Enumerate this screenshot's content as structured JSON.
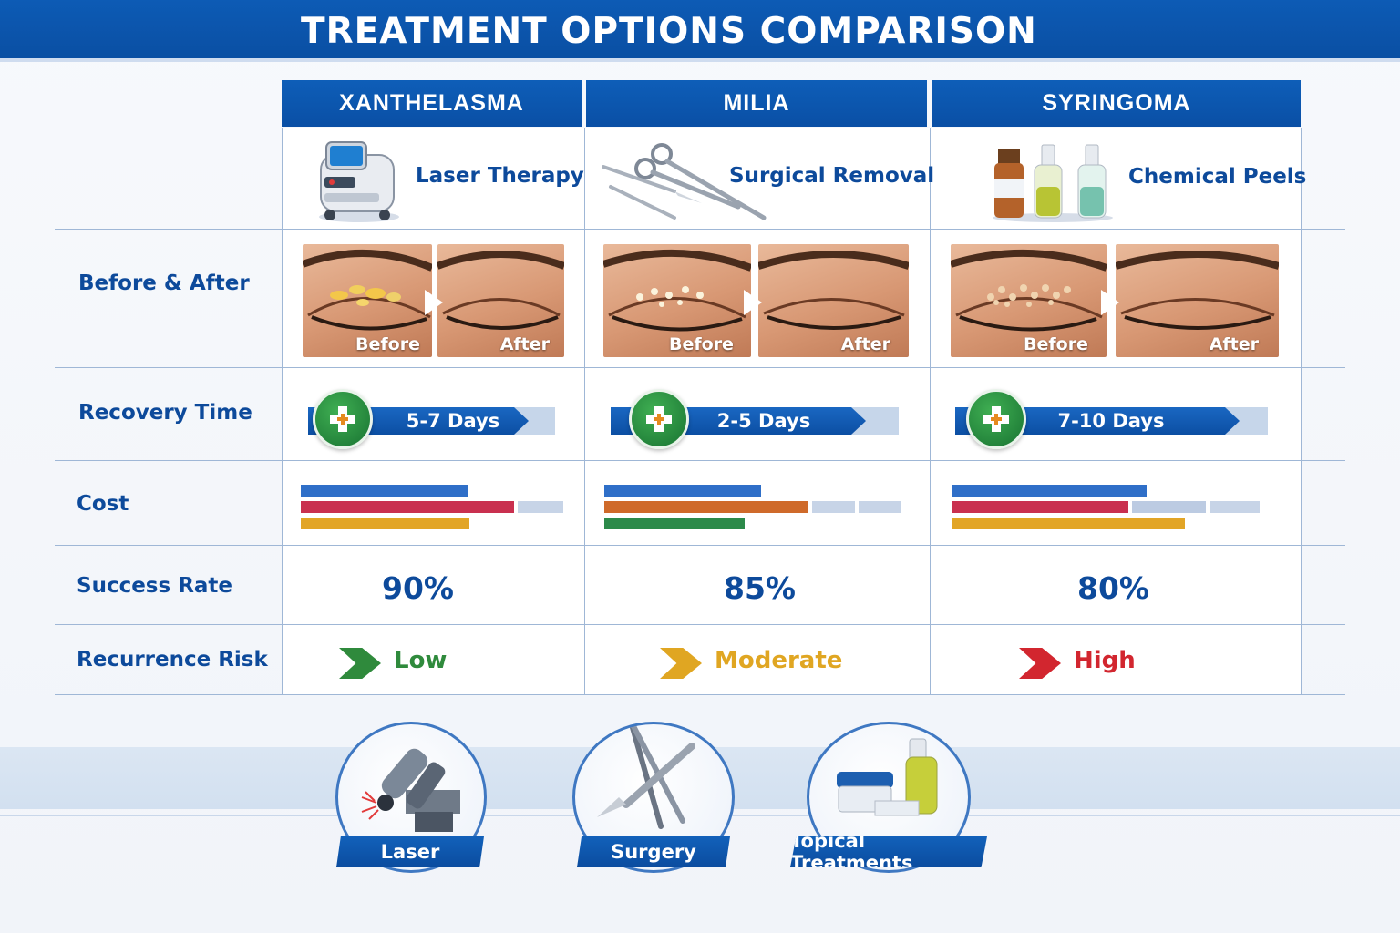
{
  "title": "TREATMENT OPTIONS COMPARISON",
  "columns": [
    {
      "heading": "XANTHELASMA",
      "treatment": "Laser Therapy",
      "treatment_icon": "laser-device-icon"
    },
    {
      "heading": "MILIA",
      "treatment": "Surgical Removal",
      "treatment_icon": "surgical-tools-icon"
    },
    {
      "heading": "SYRINGOMA",
      "treatment": "Chemical Peels",
      "treatment_icon": "chemical-vials-icon"
    }
  ],
  "rows": {
    "before_after": "Before & After",
    "recovery": "Recovery Time",
    "cost": "Cost",
    "success": "Success Rate",
    "risk": "Recurrence Risk"
  },
  "photo_labels": {
    "before": "Before",
    "after": "After"
  },
  "recovery": [
    {
      "label": "5-7 Days",
      "fill_fraction": 0.82
    },
    {
      "label": "2-5 Days",
      "fill_fraction": 0.87
    },
    {
      "label": "7-10 Days",
      "fill_fraction": 0.91
    }
  ],
  "cost_colors": {
    "blue": "#2f6fc8",
    "red": "#c9304f",
    "yellow": "#e2a526",
    "orange": "#cf6a2a",
    "green": "#2c8a4a",
    "track": "#c7d4e7"
  },
  "success": [
    "90%",
    "85%",
    "80%"
  ],
  "risk": [
    {
      "label": "Low",
      "color": "#2f8a3c"
    },
    {
      "label": "Moderate",
      "color": "#e0a622"
    },
    {
      "label": "High",
      "color": "#d2262f"
    }
  ],
  "bottom_icons": [
    {
      "label": "Laser",
      "icon": "laser-handpiece-icon"
    },
    {
      "label": "Surgery",
      "icon": "scalpel-forceps-icon"
    },
    {
      "label": "Topical Treatments",
      "icon": "cream-jars-icon"
    }
  ]
}
